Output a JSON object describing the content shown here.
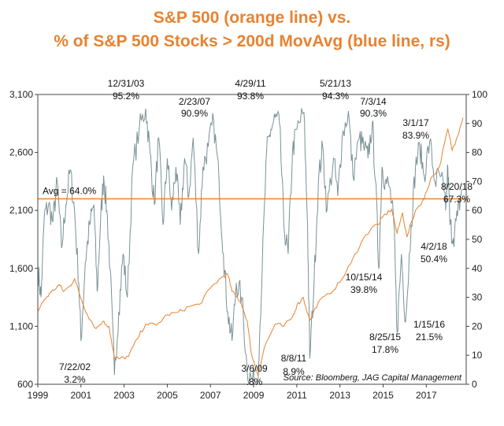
{
  "chart_data": {
    "type": "line",
    "title": [
      "S&P 500 (orange line) vs.",
      "% of S&P 500 Stocks > 200d MovAvg (blue line, rs)"
    ],
    "x_ticks": [
      "1999",
      "2001",
      "2003",
      "2005",
      "2007",
      "2009",
      "2011",
      "2013",
      "2015",
      "2017"
    ],
    "xlim": [
      1999.0,
      2018.85
    ],
    "left_axis": {
      "ticks": [
        "600",
        "1,100",
        "1,600",
        "2,100",
        "2,600",
        "3,100"
      ],
      "ylim": [
        600,
        3100
      ]
    },
    "right_axis": {
      "ticks": [
        "0",
        "10",
        "20",
        "30",
        "40",
        "50",
        "60",
        "70",
        "80",
        "90",
        "100"
      ],
      "ylim": [
        0,
        100
      ]
    },
    "grid": false,
    "series": [
      {
        "name": "S&P 500",
        "axis": "left",
        "color": "#e8822f",
        "points": [
          [
            1999.0,
            1230
          ],
          [
            1999.3,
            1330
          ],
          [
            1999.6,
            1390
          ],
          [
            2000.0,
            1460
          ],
          [
            2000.2,
            1400
          ],
          [
            2000.5,
            1450
          ],
          [
            2000.7,
            1510
          ],
          [
            2001.0,
            1340
          ],
          [
            2001.3,
            1200
          ],
          [
            2001.7,
            1080
          ],
          [
            2002.0,
            1140
          ],
          [
            2002.3,
            1100
          ],
          [
            2002.55,
            830
          ],
          [
            2002.8,
            820
          ],
          [
            2003.2,
            840
          ],
          [
            2003.6,
            990
          ],
          [
            2004.0,
            1120
          ],
          [
            2004.5,
            1110
          ],
          [
            2005.0,
            1200
          ],
          [
            2005.5,
            1220
          ],
          [
            2006.0,
            1270
          ],
          [
            2006.5,
            1290
          ],
          [
            2007.0,
            1430
          ],
          [
            2007.5,
            1520
          ],
          [
            2007.8,
            1550
          ],
          [
            2008.0,
            1400
          ],
          [
            2008.4,
            1310
          ],
          [
            2008.7,
            1150
          ],
          [
            2008.9,
            860
          ],
          [
            2009.2,
            680
          ],
          [
            2009.5,
            920
          ],
          [
            2010.0,
            1120
          ],
          [
            2010.4,
            1100
          ],
          [
            2010.8,
            1180
          ],
          [
            2011.0,
            1280
          ],
          [
            2011.3,
            1350
          ],
          [
            2011.6,
            1150
          ],
          [
            2012.0,
            1310
          ],
          [
            2012.5,
            1380
          ],
          [
            2013.0,
            1480
          ],
          [
            2013.5,
            1640
          ],
          [
            2014.0,
            1830
          ],
          [
            2014.5,
            1960
          ],
          [
            2014.8,
            1980
          ],
          [
            2015.0,
            2050
          ],
          [
            2015.4,
            2110
          ],
          [
            2015.65,
            1900
          ],
          [
            2015.9,
            2080
          ],
          [
            2016.1,
            1870
          ],
          [
            2016.5,
            2100
          ],
          [
            2016.9,
            2200
          ],
          [
            2017.2,
            2370
          ],
          [
            2017.6,
            2470
          ],
          [
            2018.0,
            2800
          ],
          [
            2018.2,
            2620
          ],
          [
            2018.4,
            2720
          ],
          [
            2018.7,
            2900
          ]
        ]
      },
      {
        "name": "% of S&P 500 Stocks > 200d MovAvg",
        "axis": "right",
        "color": "#7a9296",
        "points": [
          [
            1999.0,
            40
          ],
          [
            1999.15,
            30
          ],
          [
            1999.3,
            58
          ],
          [
            1999.5,
            62
          ],
          [
            1999.7,
            56
          ],
          [
            1999.9,
            70
          ],
          [
            2000.1,
            47
          ],
          [
            2000.3,
            62
          ],
          [
            2000.5,
            74
          ],
          [
            2000.7,
            60
          ],
          [
            2000.9,
            35
          ],
          [
            2001.0,
            15
          ],
          [
            2001.2,
            42
          ],
          [
            2001.4,
            55
          ],
          [
            2001.6,
            62
          ],
          [
            2001.75,
            32
          ],
          [
            2001.9,
            55
          ],
          [
            2002.05,
            72
          ],
          [
            2002.2,
            60
          ],
          [
            2002.35,
            40
          ],
          [
            2002.55,
            3.2
          ],
          [
            2002.75,
            25
          ],
          [
            2002.95,
            45
          ],
          [
            2003.15,
            30
          ],
          [
            2003.4,
            75
          ],
          [
            2003.7,
            88
          ],
          [
            2004.0,
            95.2
          ],
          [
            2004.2,
            80
          ],
          [
            2004.4,
            62
          ],
          [
            2004.6,
            85
          ],
          [
            2004.8,
            55
          ],
          [
            2005.0,
            78
          ],
          [
            2005.2,
            60
          ],
          [
            2005.4,
            75
          ],
          [
            2005.6,
            55
          ],
          [
            2005.8,
            78
          ],
          [
            2006.0,
            65
          ],
          [
            2006.2,
            85
          ],
          [
            2006.45,
            45
          ],
          [
            2006.65,
            75
          ],
          [
            2006.9,
            82
          ],
          [
            2007.15,
            90.9
          ],
          [
            2007.4,
            70
          ],
          [
            2007.6,
            45
          ],
          [
            2007.8,
            25
          ],
          [
            2008.0,
            15
          ],
          [
            2008.2,
            35
          ],
          [
            2008.45,
            30
          ],
          [
            2008.7,
            5
          ],
          [
            2008.9,
            2
          ],
          [
            2009.18,
            0.8
          ],
          [
            2009.4,
            40
          ],
          [
            2009.6,
            80
          ],
          [
            2009.8,
            88
          ],
          [
            2010.0,
            92
          ],
          [
            2010.2,
            90
          ],
          [
            2010.4,
            55
          ],
          [
            2010.6,
            45
          ],
          [
            2010.8,
            80
          ],
          [
            2011.0,
            88
          ],
          [
            2011.33,
            93.8
          ],
          [
            2011.5,
            55
          ],
          [
            2011.6,
            8.9
          ],
          [
            2011.8,
            35
          ],
          [
            2012.0,
            70
          ],
          [
            2012.2,
            82
          ],
          [
            2012.4,
            60
          ],
          [
            2012.7,
            78
          ],
          [
            2012.9,
            65
          ],
          [
            2013.1,
            85
          ],
          [
            2013.39,
            94.3
          ],
          [
            2013.6,
            72
          ],
          [
            2013.9,
            85
          ],
          [
            2014.1,
            82
          ],
          [
            2014.3,
            78
          ],
          [
            2014.5,
            90.3
          ],
          [
            2014.65,
            70
          ],
          [
            2014.8,
            39.8
          ],
          [
            2014.95,
            75
          ],
          [
            2015.1,
            70
          ],
          [
            2015.3,
            68
          ],
          [
            2015.5,
            55
          ],
          [
            2015.65,
            17.8
          ],
          [
            2015.85,
            45
          ],
          [
            2016.04,
            21.5
          ],
          [
            2016.3,
            55
          ],
          [
            2016.5,
            75
          ],
          [
            2016.7,
            82
          ],
          [
            2016.9,
            72
          ],
          [
            2017.16,
            83.9
          ],
          [
            2017.4,
            70
          ],
          [
            2017.7,
            72
          ],
          [
            2017.9,
            60
          ],
          [
            2018.0,
            75
          ],
          [
            2018.1,
            55
          ],
          [
            2018.25,
            50.4
          ],
          [
            2018.45,
            58
          ],
          [
            2018.64,
            67.3
          ]
        ]
      }
    ],
    "avg_line": {
      "label": "Avg = 64.0%",
      "value": 64.0,
      "axis": "right",
      "color": "#e8822f"
    },
    "annotations": [
      {
        "date": "12/31/03",
        "value": "95.2%"
      },
      {
        "date": "2/23/07",
        "value": "90.9%"
      },
      {
        "date": "4/29/11",
        "value": "93.8%"
      },
      {
        "date": "5/21/13",
        "value": "94.3%"
      },
      {
        "date": "7/3/14",
        "value": "90.3%"
      },
      {
        "date": "3/1/17",
        "value": "83.9%"
      },
      {
        "date": "8/20/18",
        "value": "67.3%"
      },
      {
        "date": "4/2/18",
        "value": "50.4%"
      },
      {
        "date": "10/15/14",
        "value": "39.8%"
      },
      {
        "date": "8/25/15",
        "value": "17.8%"
      },
      {
        "date": "1/15/16",
        "value": "21.5%"
      },
      {
        "date": "8/8/11",
        "value": "8.9%"
      },
      {
        "date": "3/6/09",
        "value": ".8%"
      },
      {
        "date": "7/22/02",
        "value": "3.2%"
      }
    ],
    "source": "Source: Bloomberg, JAG Capital Management"
  }
}
